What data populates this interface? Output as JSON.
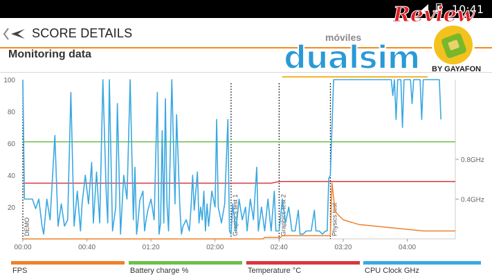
{
  "status_bar": {
    "time": "10:41"
  },
  "header": {
    "title": "SCORE DETAILS"
  },
  "section": {
    "title": "Monitoring data"
  },
  "watermark": {
    "top_word": "móviles",
    "brand": "dualsim",
    "review": "Review",
    "byline": "BY GAYAFON"
  },
  "colors": {
    "fps": "#f0802a",
    "battery": "#6cc04a",
    "temperature": "#d9373f",
    "cpu": "#3aa8e0",
    "marker": "#222222",
    "grid": "#dddddd",
    "accent": "#f28a1a"
  },
  "chart_data": {
    "type": "line",
    "x_ticks": [
      "00:00",
      "00:40",
      "01:20",
      "02:00",
      "02:40",
      "03:20",
      "04:00"
    ],
    "x_tick_seconds": [
      0,
      40,
      80,
      120,
      160,
      200,
      240
    ],
    "x_range_seconds": [
      0,
      270
    ],
    "y_ticks": [
      20,
      40,
      60,
      80,
      100
    ],
    "ylim": [
      0,
      100
    ],
    "right_axis_ticks": [
      "0.4GHz",
      "0.8GHz"
    ],
    "right_axis_values_ghz": [
      0.4,
      0.8
    ],
    "right_ylim_ghz": [
      0,
      1.6
    ],
    "markers": [
      {
        "label": "DEMO",
        "t": 0
      },
      {
        "label": "Graphics test 1",
        "t": 130
      },
      {
        "label": "Graphics test 2",
        "t": 160
      },
      {
        "label": "Physics test",
        "t": 192
      }
    ],
    "series": [
      {
        "name": "FPS",
        "key": "fps",
        "points": [
          [
            0,
            0
          ],
          [
            110,
            0
          ],
          [
            150,
            0
          ],
          [
            151,
            1
          ],
          [
            161,
            1
          ],
          [
            162,
            2
          ],
          [
            192,
            2
          ],
          [
            193,
            35
          ],
          [
            195,
            17
          ],
          [
            200,
            12
          ],
          [
            210,
            9
          ],
          [
            230,
            7
          ],
          [
            250,
            5
          ],
          [
            270,
            5
          ]
        ]
      },
      {
        "name": "Battery charge %",
        "key": "battery",
        "points": [
          [
            0,
            61
          ],
          [
            270,
            61
          ]
        ]
      },
      {
        "name": "Temperature °C",
        "key": "temperature",
        "points": [
          [
            0,
            35
          ],
          [
            155,
            35
          ],
          [
            160,
            36
          ],
          [
            270,
            36
          ]
        ]
      },
      {
        "name": "CPU Clock GHz",
        "key": "cpu",
        "points": [
          [
            0,
            100
          ],
          [
            1,
            25
          ],
          [
            6,
            25
          ],
          [
            8,
            19
          ],
          [
            10,
            25
          ],
          [
            12,
            8
          ],
          [
            13,
            3
          ],
          [
            15,
            25
          ],
          [
            17,
            12
          ],
          [
            20,
            65
          ],
          [
            22,
            8
          ],
          [
            24,
            22
          ],
          [
            26,
            8
          ],
          [
            28,
            12
          ],
          [
            30,
            92
          ],
          [
            32,
            8
          ],
          [
            34,
            30
          ],
          [
            36,
            5
          ],
          [
            37,
            22
          ],
          [
            39,
            40
          ],
          [
            41,
            22
          ],
          [
            43,
            48
          ],
          [
            44,
            10
          ],
          [
            46,
            42
          ],
          [
            48,
            10
          ],
          [
            50,
            100
          ],
          [
            52,
            30
          ],
          [
            53,
            10
          ],
          [
            54,
            100
          ],
          [
            56,
            5
          ],
          [
            58,
            20
          ],
          [
            59,
            85
          ],
          [
            61,
            3
          ],
          [
            63,
            40
          ],
          [
            65,
            25
          ],
          [
            67,
            100
          ],
          [
            69,
            12
          ],
          [
            70,
            45
          ],
          [
            71,
            3
          ],
          [
            72,
            12
          ],
          [
            73,
            24
          ],
          [
            75,
            30
          ],
          [
            76,
            5
          ],
          [
            77,
            12
          ],
          [
            78,
            18
          ],
          [
            80,
            25
          ],
          [
            82,
            12
          ],
          [
            84,
            92
          ],
          [
            85,
            3
          ],
          [
            86,
            10
          ],
          [
            87,
            68
          ],
          [
            88,
            10
          ],
          [
            89,
            88
          ],
          [
            90,
            22
          ],
          [
            91,
            5
          ],
          [
            93,
            100
          ],
          [
            95,
            22
          ],
          [
            96,
            78
          ],
          [
            98,
            20
          ],
          [
            99,
            3
          ],
          [
            100,
            8
          ],
          [
            102,
            12
          ],
          [
            104,
            5
          ],
          [
            105,
            20
          ],
          [
            106,
            40
          ],
          [
            107,
            18
          ],
          [
            109,
            42
          ],
          [
            110,
            10
          ],
          [
            111,
            20
          ],
          [
            112,
            12
          ],
          [
            113,
            30
          ],
          [
            114,
            5
          ],
          [
            115,
            22
          ],
          [
            116,
            8
          ],
          [
            118,
            30
          ],
          [
            120,
            20
          ],
          [
            121,
            75
          ],
          [
            122,
            20
          ],
          [
            124,
            10
          ],
          [
            126,
            22
          ],
          [
            128,
            75
          ],
          [
            129,
            5
          ],
          [
            130,
            3
          ],
          [
            131,
            22
          ],
          [
            133,
            5
          ],
          [
            135,
            25
          ],
          [
            137,
            12
          ],
          [
            139,
            20
          ],
          [
            140,
            5
          ],
          [
            142,
            25
          ],
          [
            144,
            12
          ],
          [
            146,
            45
          ],
          [
            147,
            5
          ],
          [
            149,
            20
          ],
          [
            151,
            5
          ],
          [
            153,
            25
          ],
          [
            155,
            5
          ],
          [
            157,
            30
          ],
          [
            158,
            5
          ],
          [
            160,
            5
          ],
          [
            162,
            25
          ],
          [
            164,
            10
          ],
          [
            166,
            20
          ],
          [
            168,
            5
          ],
          [
            170,
            5
          ],
          [
            172,
            18
          ],
          [
            173,
            3
          ],
          [
            175,
            3
          ],
          [
            177,
            5
          ],
          [
            180,
            5
          ],
          [
            182,
            18
          ],
          [
            183,
            5
          ],
          [
            185,
            5
          ],
          [
            187,
            3
          ],
          [
            189,
            5
          ],
          [
            190,
            5
          ],
          [
            191,
            38
          ],
          [
            192,
            40
          ],
          [
            194,
            100
          ],
          [
            225,
            100
          ],
          [
            230,
            100
          ],
          [
            231,
            90
          ],
          [
            232,
            100
          ],
          [
            233,
            75
          ],
          [
            234,
            100
          ],
          [
            236,
            100
          ],
          [
            237,
            70
          ],
          [
            238,
            100
          ],
          [
            242,
            100
          ],
          [
            243,
            85
          ],
          [
            244,
            100
          ],
          [
            248,
            100
          ],
          [
            249,
            75
          ],
          [
            250,
            100
          ],
          [
            260,
            100
          ],
          [
            261,
            75
          ]
        ]
      }
    ]
  },
  "legend": [
    {
      "label": "FPS",
      "key": "fps"
    },
    {
      "label": "Battery charge %",
      "key": "battery"
    },
    {
      "label": "Temperature °C",
      "key": "temperature"
    },
    {
      "label": "CPU Clock GHz",
      "key": "cpu"
    }
  ]
}
